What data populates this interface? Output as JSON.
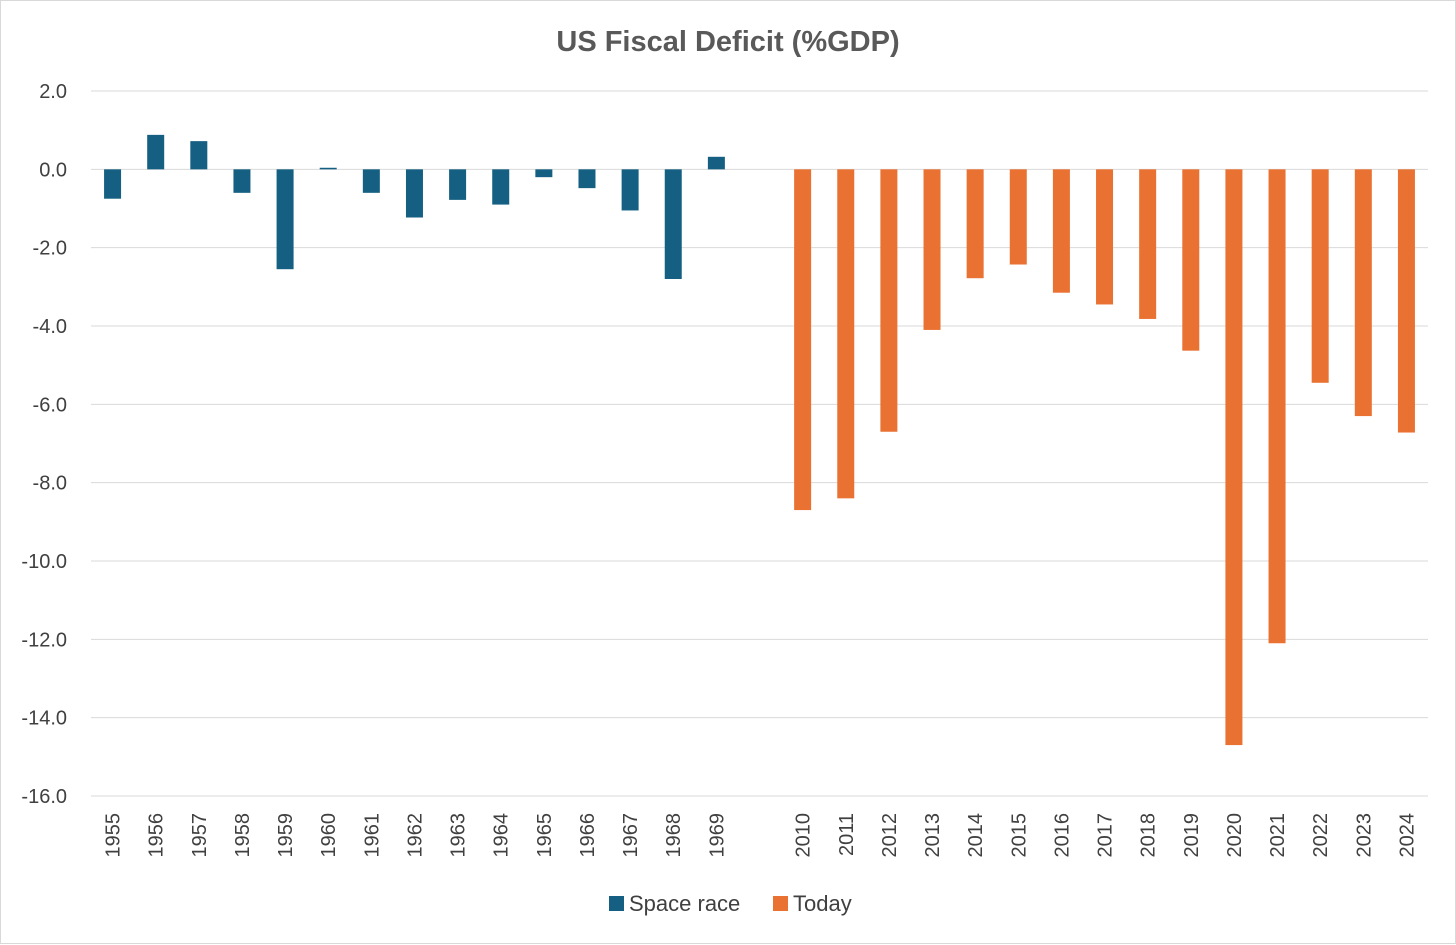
{
  "chart_data": {
    "type": "bar",
    "title": "US Fiscal Deficit (%GDP)",
    "xlabel": "",
    "ylabel": "",
    "ylim": [
      -16,
      2
    ],
    "y_ticks": [
      "2.0",
      "0.0",
      "-2.0",
      "-4.0",
      "-6.0",
      "-8.0",
      "-10.0",
      "-12.0",
      "-14.0",
      "-16.0"
    ],
    "y_tick_values": [
      2,
      0,
      -2,
      -4,
      -6,
      -8,
      -10,
      -12,
      -14,
      -16
    ],
    "grid": true,
    "legend_position": "bottom",
    "categories": [
      "1955",
      "1956",
      "1957",
      "1958",
      "1959",
      "1960",
      "1961",
      "1962",
      "1963",
      "1964",
      "1965",
      "1966",
      "1967",
      "1968",
      "1969",
      "",
      "2010",
      "2011",
      "2012",
      "2013",
      "2014",
      "2015",
      "2016",
      "2017",
      "2018",
      "2019",
      "2020",
      "2021",
      "2022",
      "2023",
      "2024"
    ],
    "series": [
      {
        "name": "Space race",
        "color": "#156082",
        "values": [
          -0.75,
          0.88,
          0.72,
          -0.6,
          -2.55,
          0.04,
          -0.6,
          -1.23,
          -0.78,
          -0.9,
          -0.2,
          -0.48,
          -1.05,
          -2.8,
          0.32,
          null,
          null,
          null,
          null,
          null,
          null,
          null,
          null,
          null,
          null,
          null,
          null,
          null,
          null,
          null,
          null
        ]
      },
      {
        "name": "Today",
        "color": "#E97132",
        "values": [
          null,
          null,
          null,
          null,
          null,
          null,
          null,
          null,
          null,
          null,
          null,
          null,
          null,
          null,
          null,
          null,
          -8.7,
          -8.4,
          -6.7,
          -4.1,
          -2.78,
          -2.43,
          -3.15,
          -3.45,
          -3.82,
          -4.63,
          -14.7,
          -12.1,
          -5.45,
          -6.3,
          -6.72
        ]
      }
    ]
  }
}
